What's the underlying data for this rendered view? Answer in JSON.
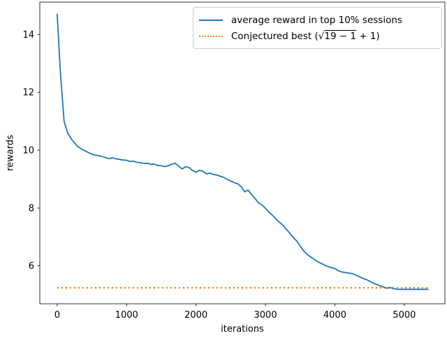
{
  "figure": {
    "background": "#ffffff",
    "spine_color": "#000000"
  },
  "chart_data": {
    "type": "line",
    "title": "",
    "xlabel": "iterations",
    "ylabel": "rewards",
    "xlim": [
      -250,
      5585
    ],
    "ylim": [
      4.69,
      15.12
    ],
    "xticks": [
      0,
      1000,
      2000,
      3000,
      4000,
      5000
    ],
    "yticks": [
      6,
      8,
      10,
      12,
      14
    ],
    "grid": false,
    "legend": {
      "position": "upper right",
      "items": [
        {
          "label": "average reward in top 10% sessions",
          "style": "solid",
          "color": "#1f77b4"
        },
        {
          "label": "Conjectured best (√19 − 1 + 1)",
          "label_parts": {
            "prefix": "Conjectured best (",
            "sqrt_sign": "√",
            "sqrt_radicand": "19 − 1",
            "suffix": " + 1)"
          },
          "style": "dotted",
          "color": "#ff7f0e"
        }
      ]
    },
    "series": [
      {
        "name": "average reward in top 10% sessions",
        "color": "#1f77b4",
        "style": "solid",
        "x": [
          0,
          50,
          100,
          150,
          200,
          250,
          300,
          350,
          400,
          450,
          500,
          550,
          600,
          650,
          700,
          750,
          800,
          850,
          900,
          950,
          1000,
          1050,
          1100,
          1150,
          1200,
          1250,
          1300,
          1350,
          1400,
          1450,
          1500,
          1550,
          1600,
          1650,
          1700,
          1750,
          1800,
          1850,
          1900,
          1950,
          2000,
          2050,
          2100,
          2150,
          2200,
          2250,
          2300,
          2350,
          2400,
          2450,
          2500,
          2550,
          2600,
          2650,
          2700,
          2750,
          2800,
          2850,
          2900,
          2950,
          3000,
          3050,
          3100,
          3150,
          3200,
          3250,
          3300,
          3350,
          3400,
          3450,
          3500,
          3550,
          3600,
          3650,
          3700,
          3750,
          3800,
          3850,
          3900,
          3950,
          4000,
          4050,
          4100,
          4150,
          4200,
          4250,
          4300,
          4350,
          4400,
          4450,
          4500,
          4550,
          4600,
          4650,
          4700,
          4750,
          4800,
          4850,
          4900,
          4950,
          5000,
          5050,
          5100,
          5150,
          5200,
          5250,
          5300,
          5340
        ],
        "y": [
          14.7,
          12.55,
          11.0,
          10.6,
          10.4,
          10.25,
          10.12,
          10.04,
          9.98,
          9.92,
          9.86,
          9.83,
          9.81,
          9.78,
          9.74,
          9.71,
          9.74,
          9.7,
          9.68,
          9.66,
          9.65,
          9.61,
          9.62,
          9.58,
          9.57,
          9.54,
          9.55,
          9.51,
          9.52,
          9.47,
          9.46,
          9.43,
          9.46,
          9.52,
          9.55,
          9.45,
          9.35,
          9.43,
          9.4,
          9.3,
          9.24,
          9.3,
          9.27,
          9.18,
          9.21,
          9.16,
          9.14,
          9.1,
          9.06,
          8.99,
          8.93,
          8.88,
          8.84,
          8.74,
          8.56,
          8.62,
          8.47,
          8.33,
          8.18,
          8.11,
          7.99,
          7.86,
          7.75,
          7.63,
          7.51,
          7.41,
          7.27,
          7.13,
          6.99,
          6.86,
          6.69,
          6.52,
          6.4,
          6.31,
          6.23,
          6.15,
          6.09,
          6.03,
          5.98,
          5.94,
          5.91,
          5.83,
          5.79,
          5.77,
          5.75,
          5.73,
          5.69,
          5.63,
          5.57,
          5.53,
          5.47,
          5.41,
          5.36,
          5.31,
          5.27,
          5.23,
          5.25,
          5.21,
          5.19,
          5.19,
          5.19,
          5.19,
          5.19,
          5.19,
          5.19,
          5.19,
          5.19,
          5.19
        ]
      },
      {
        "name": "Conjectured best",
        "color": "#ff7f0e",
        "style": "dotted",
        "value": 5.2426,
        "x_range": [
          0,
          5340
        ]
      }
    ]
  }
}
